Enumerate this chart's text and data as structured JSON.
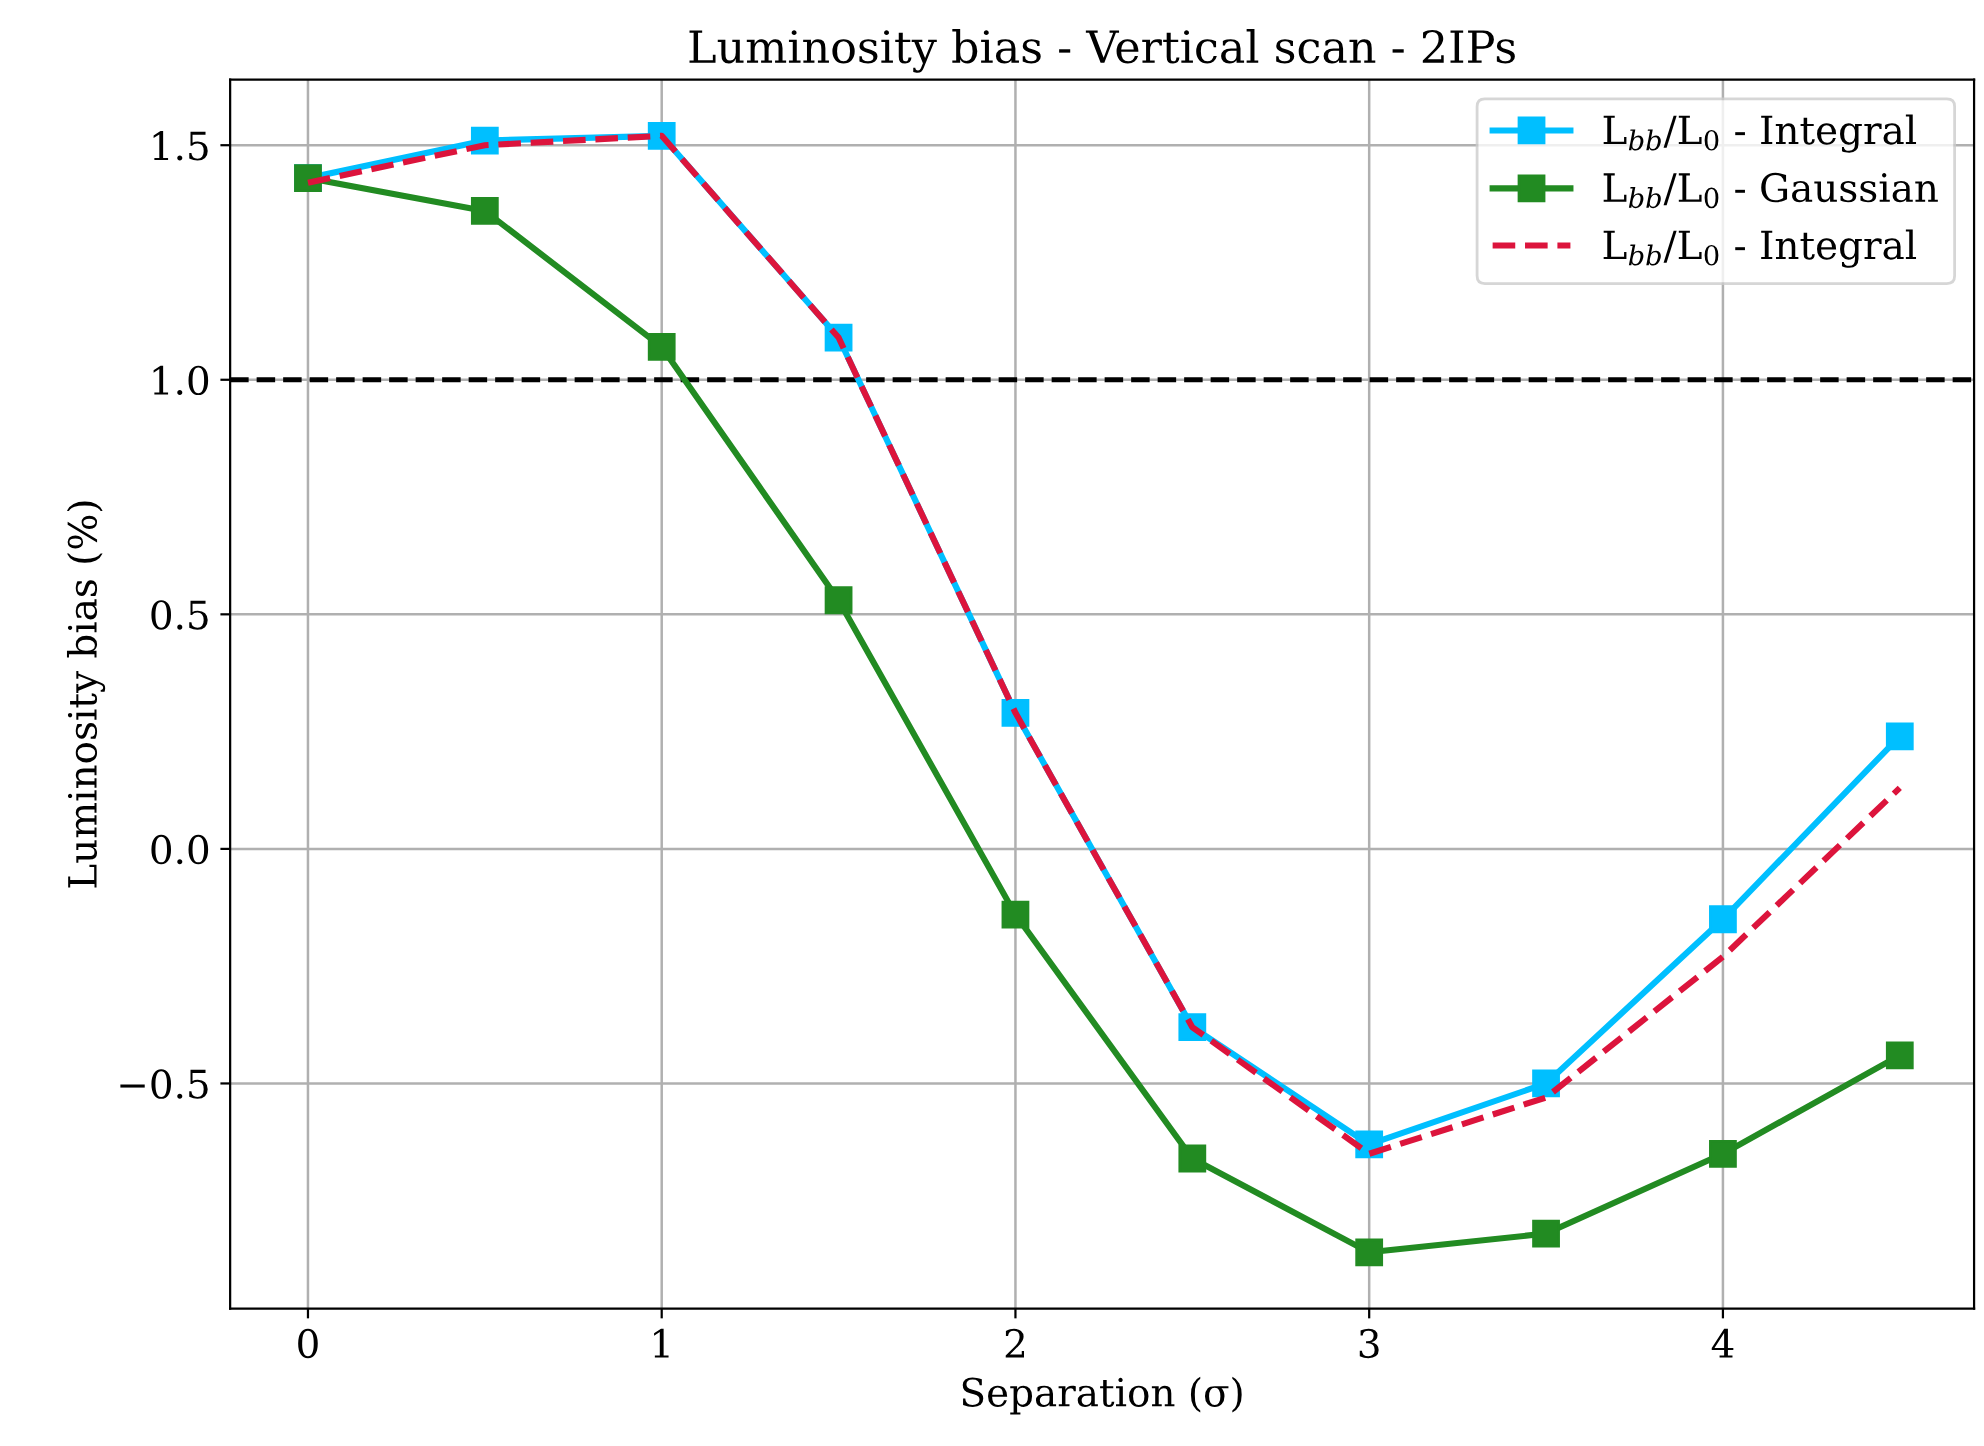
{
  "chart_data": {
    "type": "line",
    "title": "Luminosity bias - Vertical scan - 2IPs",
    "xlabel": "Separation (σ)",
    "ylabel": "Luminosity bias (%)",
    "x": [
      0,
      0.5,
      1,
      1.5,
      2,
      2.5,
      3,
      3.5,
      4,
      4.5
    ],
    "series": [
      {
        "name": "L$_{bb}$/L$_{0}$ - Integral",
        "color": "#00bfff",
        "marker": "square",
        "line_style": "solid",
        "values": [
          1.43,
          1.51,
          1.52,
          1.09,
          0.29,
          -0.38,
          -0.63,
          -0.5,
          -0.15,
          0.24
        ]
      },
      {
        "name": "L$_{bb}$/L$_{0}$ - Gaussian",
        "color": "#228b22",
        "marker": "square",
        "line_style": "solid",
        "values": [
          1.43,
          1.36,
          1.07,
          0.53,
          -0.14,
          -0.66,
          -0.86,
          -0.82,
          -0.65,
          -0.44
        ]
      },
      {
        "name": "L$_{bb}$/L$_{0}$ - Integral",
        "color": "#dc143c",
        "marker": "none",
        "line_style": "dashed",
        "values": [
          1.42,
          1.5,
          1.52,
          1.09,
          0.29,
          -0.38,
          -0.65,
          -0.53,
          -0.23,
          0.13
        ]
      }
    ],
    "xlim": [
      -0.22,
      4.71
    ],
    "ylim": [
      -0.98,
      1.64
    ],
    "xticks": [
      0,
      1,
      2,
      3,
      4
    ],
    "yticks": [
      {
        "value": -0.5,
        "label": "−0.5"
      },
      {
        "value": 0,
        "label": "0.0"
      },
      0.5,
      {
        "value": 1,
        "label": "1.0"
      },
      1.5
    ],
    "ref_lines": [
      {
        "axis": "y",
        "value": 1.0,
        "color": "#000000",
        "line_style": "dashed"
      }
    ],
    "grid": true,
    "legend": "top right"
  }
}
